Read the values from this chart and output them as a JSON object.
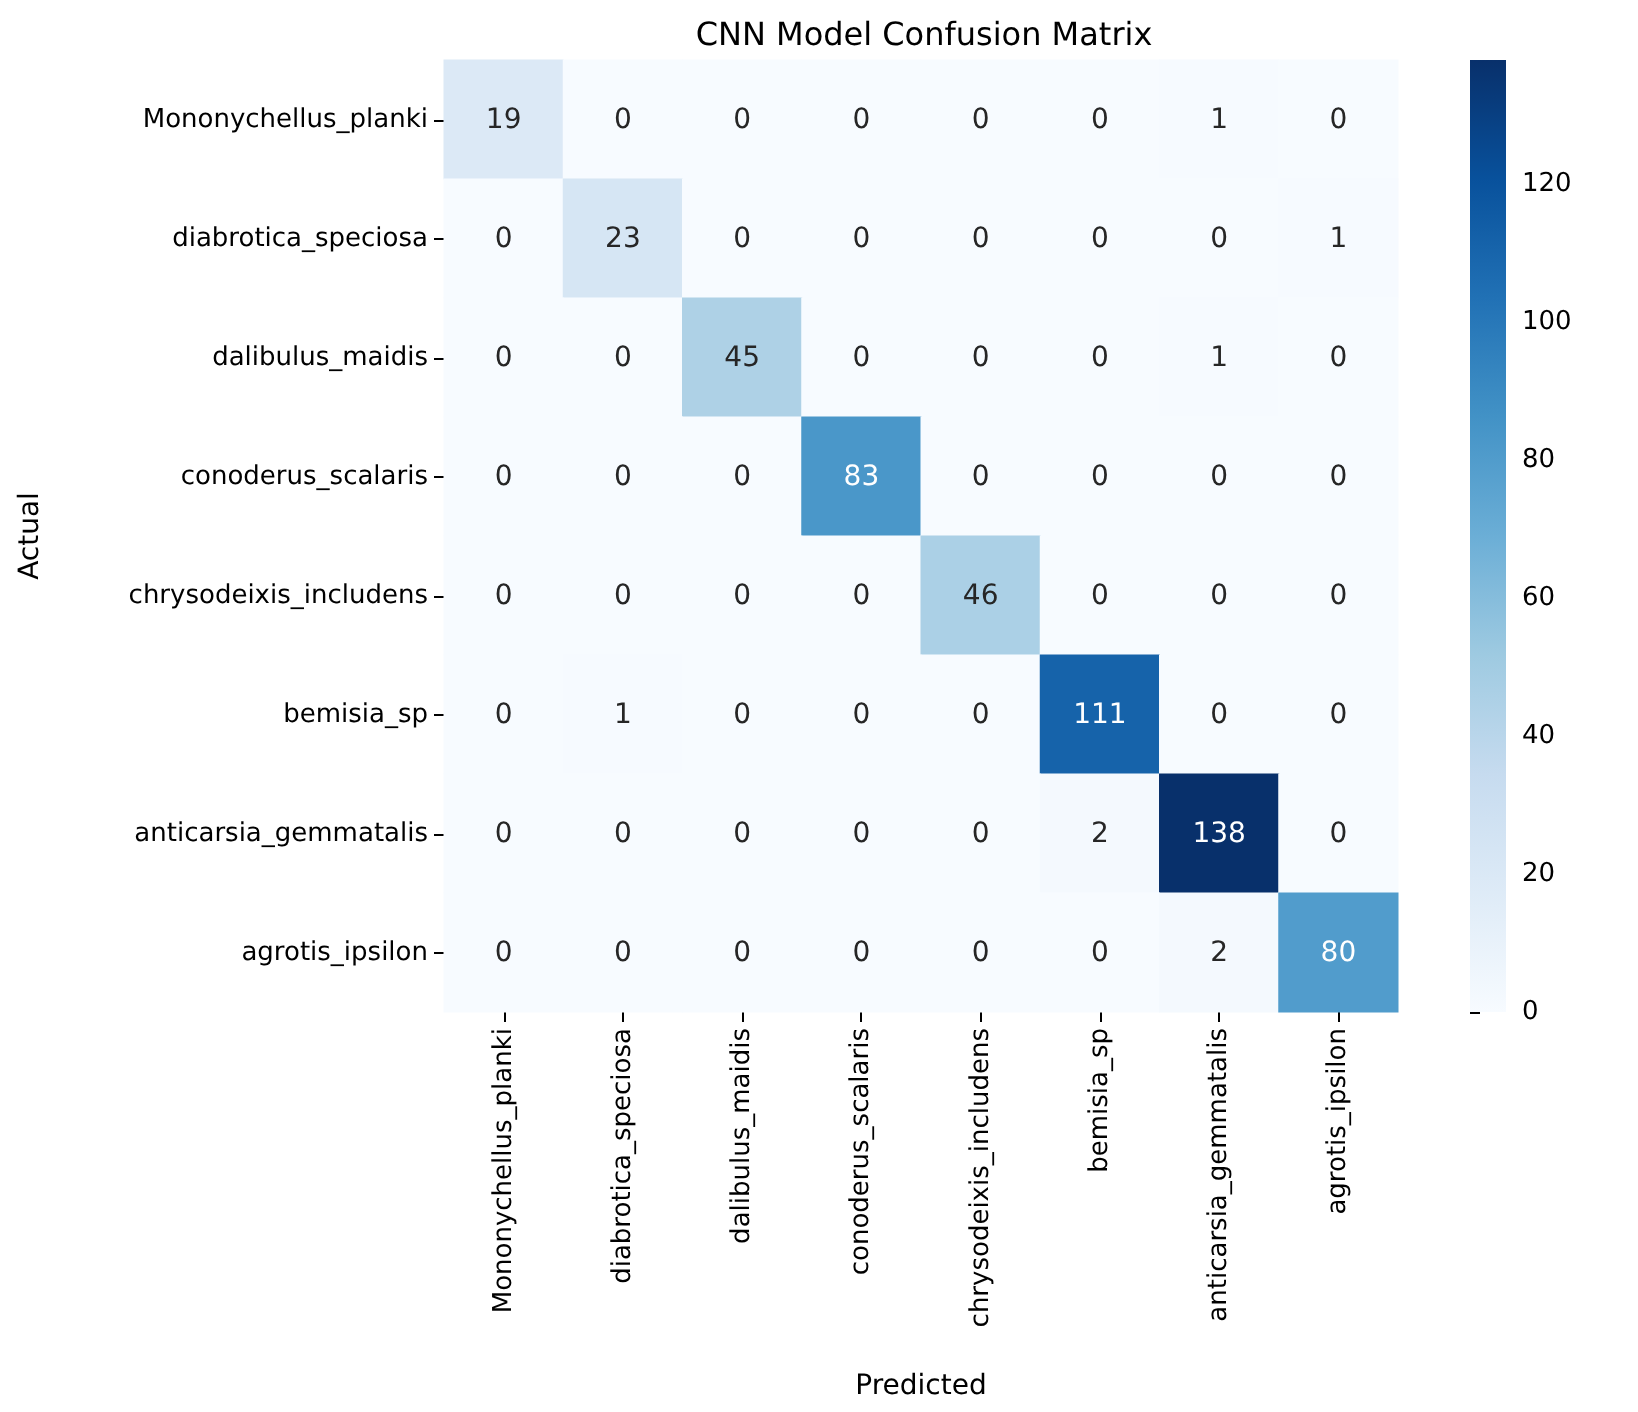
{
  "chart_data": {
    "type": "heatmap",
    "title": "CNN Model Confusion Matrix",
    "xlabel": "Predicted",
    "ylabel": "Actual",
    "categories": [
      "Mononychellus_planki",
      "diabrotica_speciosa",
      "dalibulus_maidis",
      "conoderus_scalaris",
      "chrysodeixis_includens",
      "bemisia_sp",
      "anticarsia_gemmatalis",
      "agrotis_ipsilon"
    ],
    "y_categories": [
      "Mononychellus_planki",
      "diabrotica_speciosa",
      "dalibulus_maidis",
      "conoderus_scalaris",
      "chrysodeixis_includens",
      "bemisia_sp",
      "anticarsia_gemmatalis",
      "agrotis_ipsilon"
    ],
    "cells": [
      [
        19,
        0,
        0,
        0,
        0,
        0,
        1,
        0
      ],
      [
        0,
        23,
        0,
        0,
        0,
        0,
        0,
        1
      ],
      [
        0,
        0,
        45,
        0,
        0,
        0,
        1,
        0
      ],
      [
        0,
        0,
        0,
        83,
        0,
        0,
        0,
        0
      ],
      [
        0,
        0,
        0,
        0,
        46,
        0,
        0,
        0
      ],
      [
        0,
        1,
        0,
        0,
        0,
        111,
        0,
        0
      ],
      [
        0,
        0,
        0,
        0,
        0,
        2,
        138,
        0
      ],
      [
        0,
        0,
        0,
        0,
        0,
        0,
        2,
        80
      ]
    ],
    "clim": [
      0,
      138
    ],
    "cticks": [
      0,
      20,
      40,
      60,
      80,
      100,
      120
    ],
    "data_labels": true
  }
}
